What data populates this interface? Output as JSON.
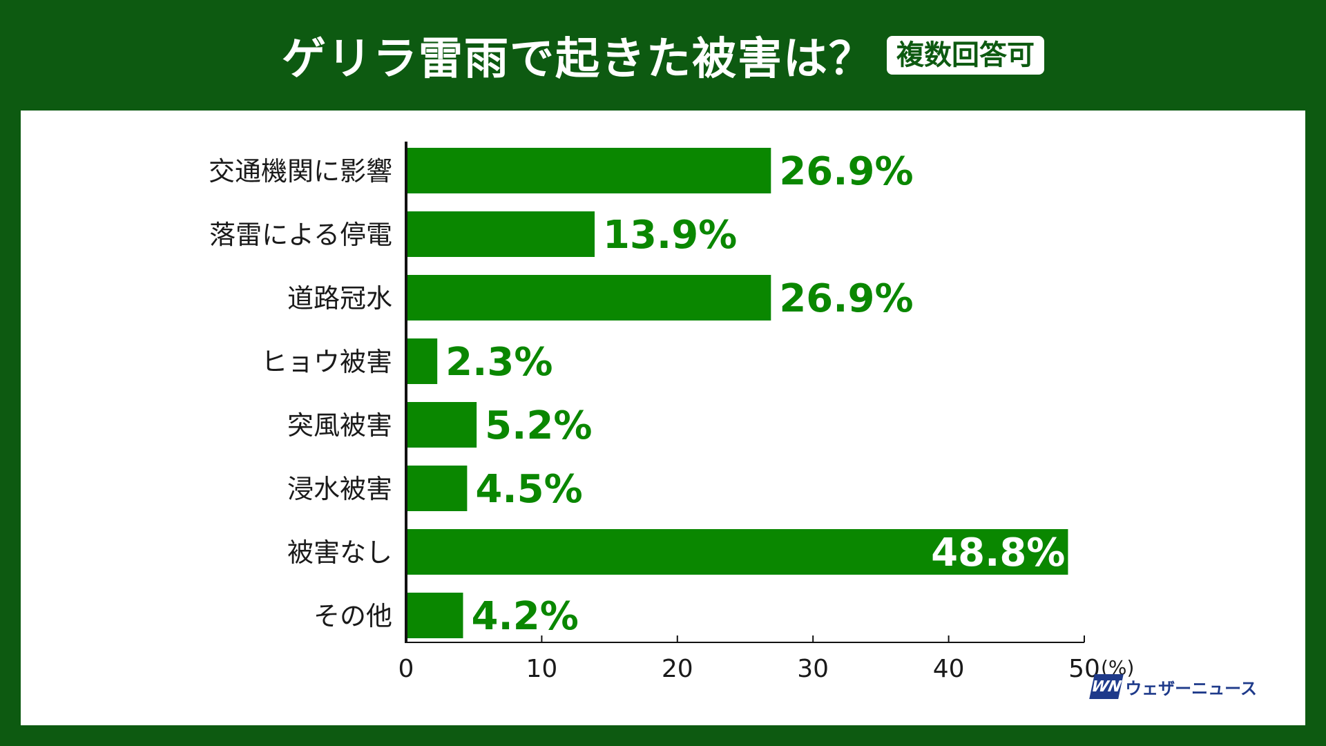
{
  "header": {
    "title": "ゲリラ雷雨で起きた被害は？",
    "badge": "複数回答可"
  },
  "logo": {
    "mark": "WN",
    "text": "ウェザーニュース"
  },
  "colors": {
    "bar": "#0a8700",
    "value_text": "#0a8700",
    "value_text_inside": "#ffffff",
    "background": "#0d5a11"
  },
  "chart_data": {
    "type": "bar",
    "orientation": "horizontal",
    "categories": [
      "交通機関に影響",
      "落雷による停電",
      "道路冠水",
      "ヒョウ被害",
      "突風被害",
      "浸水被害",
      "被害なし",
      "その他"
    ],
    "values": [
      26.9,
      13.9,
      26.9,
      2.3,
      5.2,
      4.5,
      48.8,
      4.2
    ],
    "value_labels": [
      "26.9%",
      "13.9%",
      "26.9%",
      "2.3%",
      "5.2%",
      "4.5%",
      "48.8%",
      "4.2%"
    ],
    "xlim": [
      0,
      50
    ],
    "xticks": [
      "0",
      "10",
      "20",
      "30",
      "40",
      "50"
    ],
    "x_unit": "(%)",
    "grid": false
  }
}
